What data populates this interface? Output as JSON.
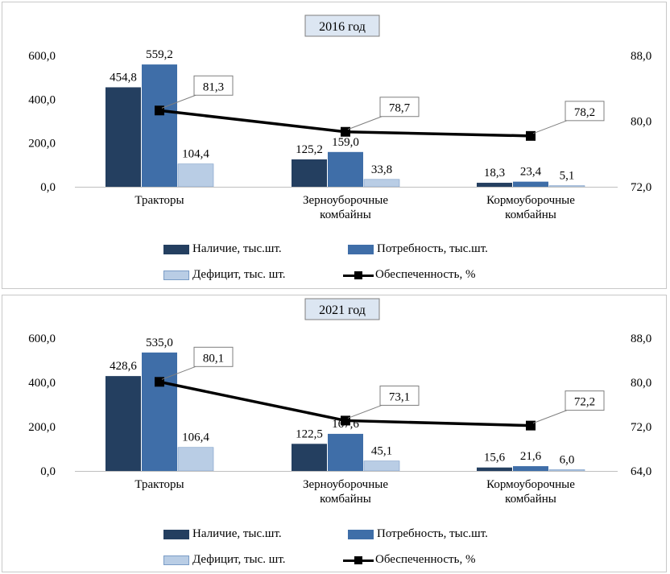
{
  "colors": {
    "nalichie": "#243f60",
    "potrebnost": "#3f6ea8",
    "deficit": "#b9cde5",
    "line": "#000000"
  },
  "legend": {
    "nalichie": "Наличие, тыс.шт.",
    "potrebnost": "Потребность, тыс.шт.",
    "deficit": "Дефицит, тыс. шт.",
    "obespechennost": "Обеспеченность, %"
  },
  "chart_data": [
    {
      "type": "bar",
      "title": "2016 год",
      "categories": [
        [
          "Тракторы"
        ],
        [
          "Зерноуборочные",
          "комбайны"
        ],
        [
          "Кормоуборочные",
          "комбайны"
        ]
      ],
      "series": [
        {
          "name": "Наличие, тыс.шт.",
          "values": [
            454.8,
            125.2,
            18.3
          ],
          "labels": [
            "454,8",
            "125,2",
            "18,3"
          ]
        },
        {
          "name": "Потребность, тыс.шт.",
          "values": [
            559.2,
            159.0,
            23.4
          ],
          "labels": [
            "559,2",
            "159,0",
            "23,4"
          ]
        },
        {
          "name": "Дефицит, тыс. шт.",
          "values": [
            104.4,
            33.8,
            5.1
          ],
          "labels": [
            "104,4",
            "33,8",
            "5,1"
          ]
        },
        {
          "name": "Обеспеченность, %",
          "axis": "right",
          "type": "line",
          "values": [
            81.3,
            78.7,
            78.2
          ],
          "labels": [
            "81,3",
            "78,7",
            "78,2"
          ]
        }
      ],
      "ylim": [
        0,
        600
      ],
      "yticks": [
        "0,0",
        "200,0",
        "400,0",
        "600,0"
      ],
      "y2lim": [
        72,
        88
      ],
      "y2ticks": [
        "72,0",
        "80,0",
        "88,0"
      ],
      "legend_position": "bottom"
    },
    {
      "type": "bar",
      "title": "2021 год",
      "categories": [
        [
          "Тракторы"
        ],
        [
          "Зерноуборочные",
          "комбайны"
        ],
        [
          "Кормоуборочные",
          "комбайны"
        ]
      ],
      "series": [
        {
          "name": "Наличие, тыс.шт.",
          "values": [
            428.6,
            122.5,
            15.6
          ],
          "labels": [
            "428,6",
            "122,5",
            "15,6"
          ]
        },
        {
          "name": "Потребность, тыс.шт.",
          "values": [
            535.0,
            167.6,
            21.6
          ],
          "labels": [
            "535,0",
            "167,6",
            "21,6"
          ]
        },
        {
          "name": "Дефицит, тыс. шт.",
          "values": [
            106.4,
            45.1,
            6.0
          ],
          "labels": [
            "106,4",
            "45,1",
            "6,0"
          ]
        },
        {
          "name": "Обеспеченность, %",
          "axis": "right",
          "type": "line",
          "values": [
            80.1,
            73.1,
            72.2
          ],
          "labels": [
            "80,1",
            "73,1",
            "72,2"
          ]
        }
      ],
      "ylim": [
        0,
        600
      ],
      "yticks": [
        "0,0",
        "200,0",
        "400,0",
        "600,0"
      ],
      "y2lim": [
        64,
        88
      ],
      "y2ticks": [
        "64,0",
        "72,0",
        "80,0",
        "88,0"
      ],
      "legend_position": "bottom"
    }
  ]
}
